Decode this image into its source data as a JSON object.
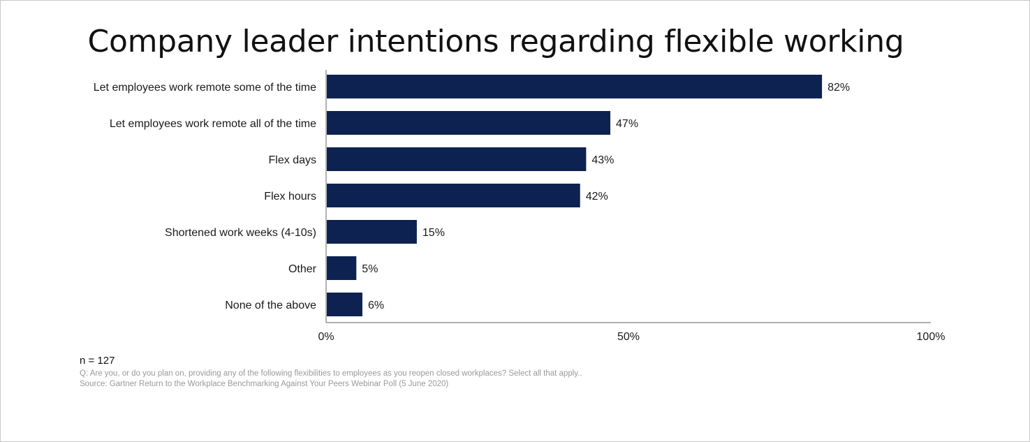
{
  "chart_data": {
    "type": "bar",
    "orientation": "horizontal",
    "title": "Company leader intentions regarding flexible working",
    "categories": [
      "Let employees work remote some of the time",
      "Let employees work remote all of the time",
      "Flex days",
      "Flex hours",
      "Shortened work weeks (4-10s)",
      "Other",
      "None of the above"
    ],
    "values": [
      82,
      47,
      43,
      42,
      15,
      5,
      6
    ],
    "value_labels": [
      "82%",
      "47%",
      "43%",
      "42%",
      "15%",
      "5%",
      "6%"
    ],
    "xlim": [
      0,
      100
    ],
    "x_ticks": [
      0,
      50,
      100
    ],
    "x_tick_labels": [
      "0%",
      "50%",
      "100%"
    ],
    "grid": false,
    "bar_color": "#0d2250"
  },
  "footnote": {
    "n": "n = 127",
    "question": "Q: Are you, or do you plan on, providing any of the following flexibilities to employees as you reopen closed workplaces? Select all that apply..",
    "source": "Source: Gartner Return to the Workplace Benchmarking Against Your Peers Webinar Poll (5 June 2020)"
  },
  "colors": {
    "bar": "#0d2250",
    "axis": "#808080",
    "text": "#1a1a1a",
    "footnote_text": "#9a9a9a"
  }
}
